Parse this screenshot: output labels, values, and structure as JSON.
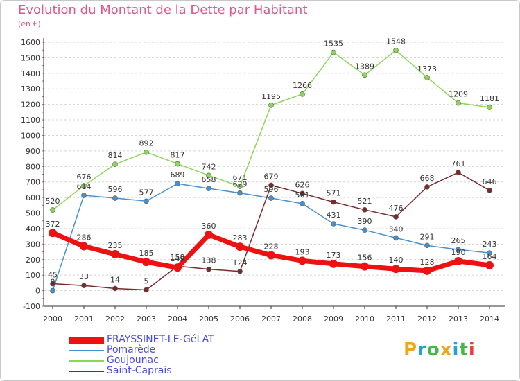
{
  "title": "Evolution du Montant de la Dette par Habitant",
  "unit_label": "(en €)",
  "logo": {
    "text": "Proxiti",
    "colors": [
      "#f2a41c",
      "#1fa3d9",
      "#45b849",
      "#f2a41c",
      "#1fa3d9",
      "#45b849",
      "#e8403c"
    ]
  },
  "chart_data": {
    "type": "line",
    "title": "Evolution du Montant de la Dette par Habitant",
    "ylabel": "(en €)",
    "xlabel": "",
    "x": [
      "2000",
      "2001",
      "2002",
      "2003",
      "2004",
      "2005",
      "2006",
      "2007",
      "2008",
      "2009",
      "2010",
      "2011",
      "2012",
      "2013",
      "2014"
    ],
    "ylim": [
      -100,
      1600
    ],
    "yticks": [
      -100,
      0,
      100,
      200,
      300,
      400,
      500,
      600,
      700,
      800,
      900,
      1000,
      1100,
      1200,
      1300,
      1400,
      1500,
      1600
    ],
    "grid": "horizontal-dashed",
    "legend_position": "bottom-left",
    "series": [
      {
        "name": "FRAYSSINET-LE-GéLAT",
        "color": "#ee1111",
        "values": [
          372,
          286,
          235,
          185,
          149,
          360,
          283,
          228,
          193,
          173,
          156,
          140,
          128,
          190,
          164
        ]
      },
      {
        "name": "Pomarède",
        "color": "#4a90cc",
        "values": [
          0,
          614,
          596,
          577,
          689,
          658,
          629,
          596,
          561,
          431,
          390,
          340,
          291,
          265,
          243
        ]
      },
      {
        "name": "Goujounac",
        "color": "#8ed65a",
        "values": [
          520,
          676,
          814,
          892,
          817,
          742,
          671,
          1195,
          1266,
          1535,
          1389,
          1548,
          1373,
          1209,
          1181
        ]
      },
      {
        "name": "Saint-Caprais",
        "color": "#7a2a2a",
        "values": [
          45,
          33,
          14,
          5,
          158,
          138,
          124,
          679,
          626,
          571,
          521,
          476,
          668,
          761,
          646
        ]
      }
    ],
    "value_labels": {
      "FRAYSSINET-LE-GéLAT": [
        "372",
        "286",
        "235",
        "185",
        "149",
        "360",
        "283",
        "228",
        "193",
        "173",
        "156",
        "140",
        "128",
        "190",
        "164"
      ],
      "Pomarède": [
        "0",
        "614",
        "596",
        "577",
        "689",
        "658",
        "629",
        "596",
        "561",
        "431",
        "390",
        "340",
        "291",
        "265",
        "243"
      ],
      "Goujounac": [
        "520",
        "676",
        "814",
        "892",
        "817",
        "742",
        "671",
        "1195",
        "1266",
        "1535",
        "1389",
        "1548",
        "1373",
        "1209",
        "1181"
      ],
      "Saint-Caprais": [
        "45",
        "33",
        "14",
        "5",
        "158",
        "138",
        "124",
        "679",
        "626",
        "571",
        "521",
        "476",
        "668",
        "761",
        "646"
      ]
    }
  }
}
